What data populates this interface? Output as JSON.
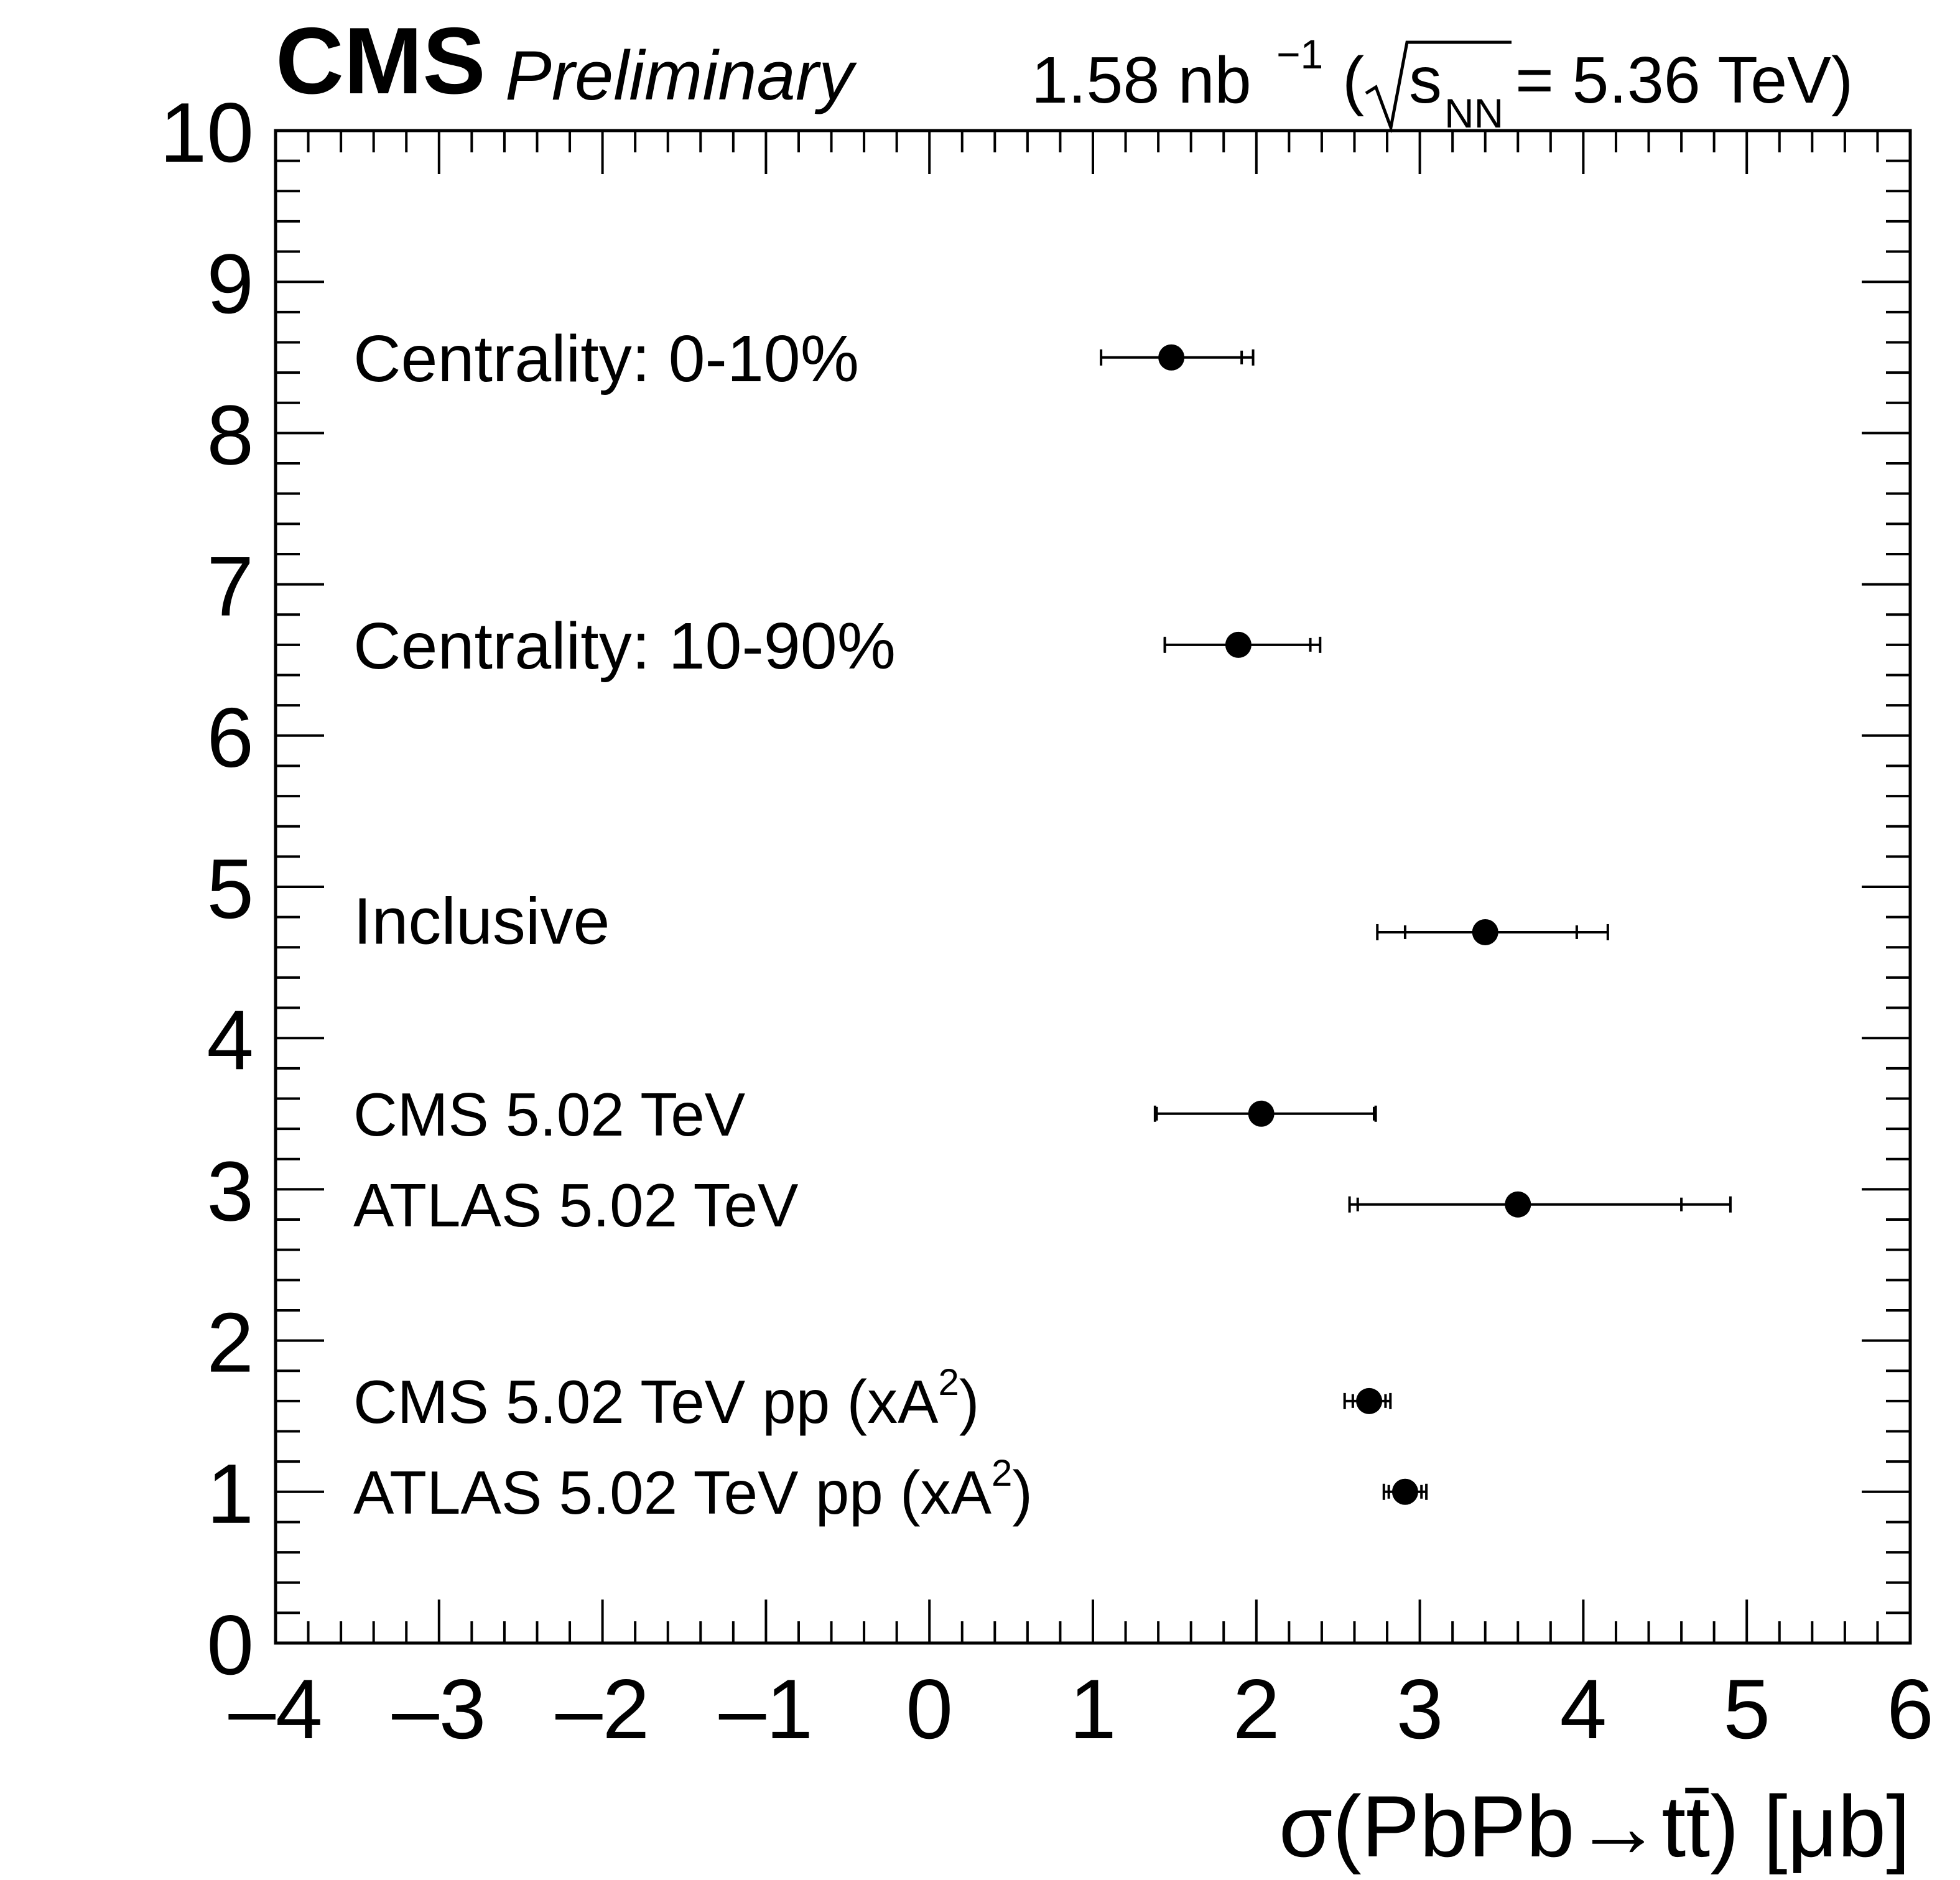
{
  "chart_data": {
    "type": "scatter",
    "experiment": "CMS",
    "status": "Preliminary",
    "lumi": {
      "value": "1.58 nb",
      "exponent": "−1",
      "energy_open": "(",
      "sqrt_var": "s",
      "sqrt_sub": "NN",
      "energy_value": " = 5.36 TeV)"
    },
    "xlabel": "σ(PbPb→tt̄) [μb]",
    "xlim": [
      -4,
      6
    ],
    "ylim": [
      0,
      10
    ],
    "x_ticks": [
      "–4",
      "–3",
      "–2",
      "–1",
      "0",
      "1",
      "2",
      "3",
      "4",
      "5",
      "6"
    ],
    "y_ticks": [
      "0",
      "1",
      "2",
      "3",
      "4",
      "5",
      "6",
      "7",
      "8",
      "9",
      "10"
    ],
    "points": [
      {
        "label": "Centrality: 0-10%",
        "x": 1.48,
        "y": 8.5,
        "stat": [
          1.42,
          1.91
        ],
        "total": [
          1.05,
          1.98
        ],
        "label_y": 8.5,
        "small_label": false
      },
      {
        "label": "Centrality: 10-90%",
        "x": 1.89,
        "y": 6.6,
        "stat": [
          1.44,
          2.33
        ],
        "total": [
          1.44,
          2.39
        ],
        "label_y": 6.6,
        "small_label": false
      },
      {
        "label": "Inclusive",
        "x": 3.4,
        "y": 4.7,
        "stat": [
          2.91,
          3.96
        ],
        "total": [
          2.74,
          4.15
        ],
        "label_y": 4.78,
        "small_label": false
      },
      {
        "label": "CMS 5.02 TeV",
        "x": 2.03,
        "y": 3.5,
        "stat": [
          1.39,
          2.72
        ],
        "total": [
          1.38,
          2.73
        ],
        "label_y": 3.5,
        "small_label": true
      },
      {
        "label": "ATLAS 5.02 TeV",
        "x": 3.6,
        "y": 2.9,
        "stat": [
          2.62,
          4.6
        ],
        "total": [
          2.57,
          4.9
        ],
        "label_y": 2.9,
        "small_label": true
      },
      {
        "label": "CMS 5.02 TeV pp (xA",
        "sup": "2",
        "suffix": ")",
        "x": 2.69,
        "y": 1.6,
        "stat": [
          2.59,
          2.79
        ],
        "total": [
          2.54,
          2.82
        ],
        "label_y": 1.6,
        "small_label": true
      },
      {
        "label": "ATLAS 5.02 TeV pp (xA",
        "sup": "2",
        "suffix": ")",
        "x": 2.91,
        "y": 1.0,
        "stat": [
          2.81,
          3.01
        ],
        "total": [
          2.78,
          3.04
        ],
        "label_y": 1.0,
        "small_label": true
      }
    ]
  }
}
